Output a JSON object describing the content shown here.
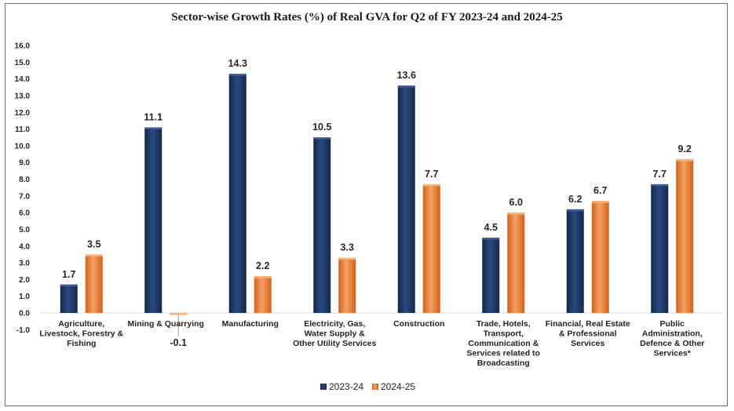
{
  "chart_data": {
    "type": "bar",
    "title": "Sector-wise Growth Rates (%) of Real GVA for Q2 of FY 2023-24 and 2024-25",
    "xlabel": "",
    "ylabel": "",
    "ylim": [
      -1.0,
      16.0
    ],
    "yticks": [
      "16.0",
      "15.0",
      "14.0",
      "13.0",
      "12.0",
      "11.0",
      "10.0",
      "9.0",
      "8.0",
      "7.0",
      "6.0",
      "5.0",
      "4.0",
      "3.0",
      "2.0",
      "1.0",
      "0.0",
      "-1.0"
    ],
    "categories": [
      [
        "Agriculture,",
        "Livestock, Forestry &",
        "Fishing"
      ],
      [
        "Mining & Quarrying"
      ],
      [
        "Manufacturing"
      ],
      [
        "Electricity, Gas,",
        "Water Supply &",
        "Other Utility Services"
      ],
      [
        "Construction"
      ],
      [
        "Trade, Hotels,",
        "Transport,",
        "Communication &",
        "Services related to",
        "Broadcasting"
      ],
      [
        "Financial, Real Estate",
        "& Professional",
        "Services"
      ],
      [
        "Public",
        "Administration,",
        "Defence & Other",
        "Services*"
      ]
    ],
    "series": [
      {
        "name": "2023-24",
        "color": "#1f3864",
        "values": [
          1.7,
          11.1,
          14.3,
          10.5,
          13.6,
          4.5,
          6.2,
          7.7
        ],
        "labels": [
          "1.7",
          "11.1",
          "14.3",
          "10.5",
          "13.6",
          "4.5",
          "6.2",
          "7.7"
        ]
      },
      {
        "name": "2024-25",
        "color": "#ed7d31",
        "values": [
          3.5,
          -0.1,
          2.2,
          3.3,
          7.7,
          6.0,
          6.7,
          9.2
        ],
        "labels": [
          "3.5",
          "-0.1",
          "2.2",
          "3.3",
          "7.7",
          "6.0",
          "6.7",
          "9.2"
        ]
      }
    ],
    "grid": false,
    "legend_position": "bottom"
  }
}
